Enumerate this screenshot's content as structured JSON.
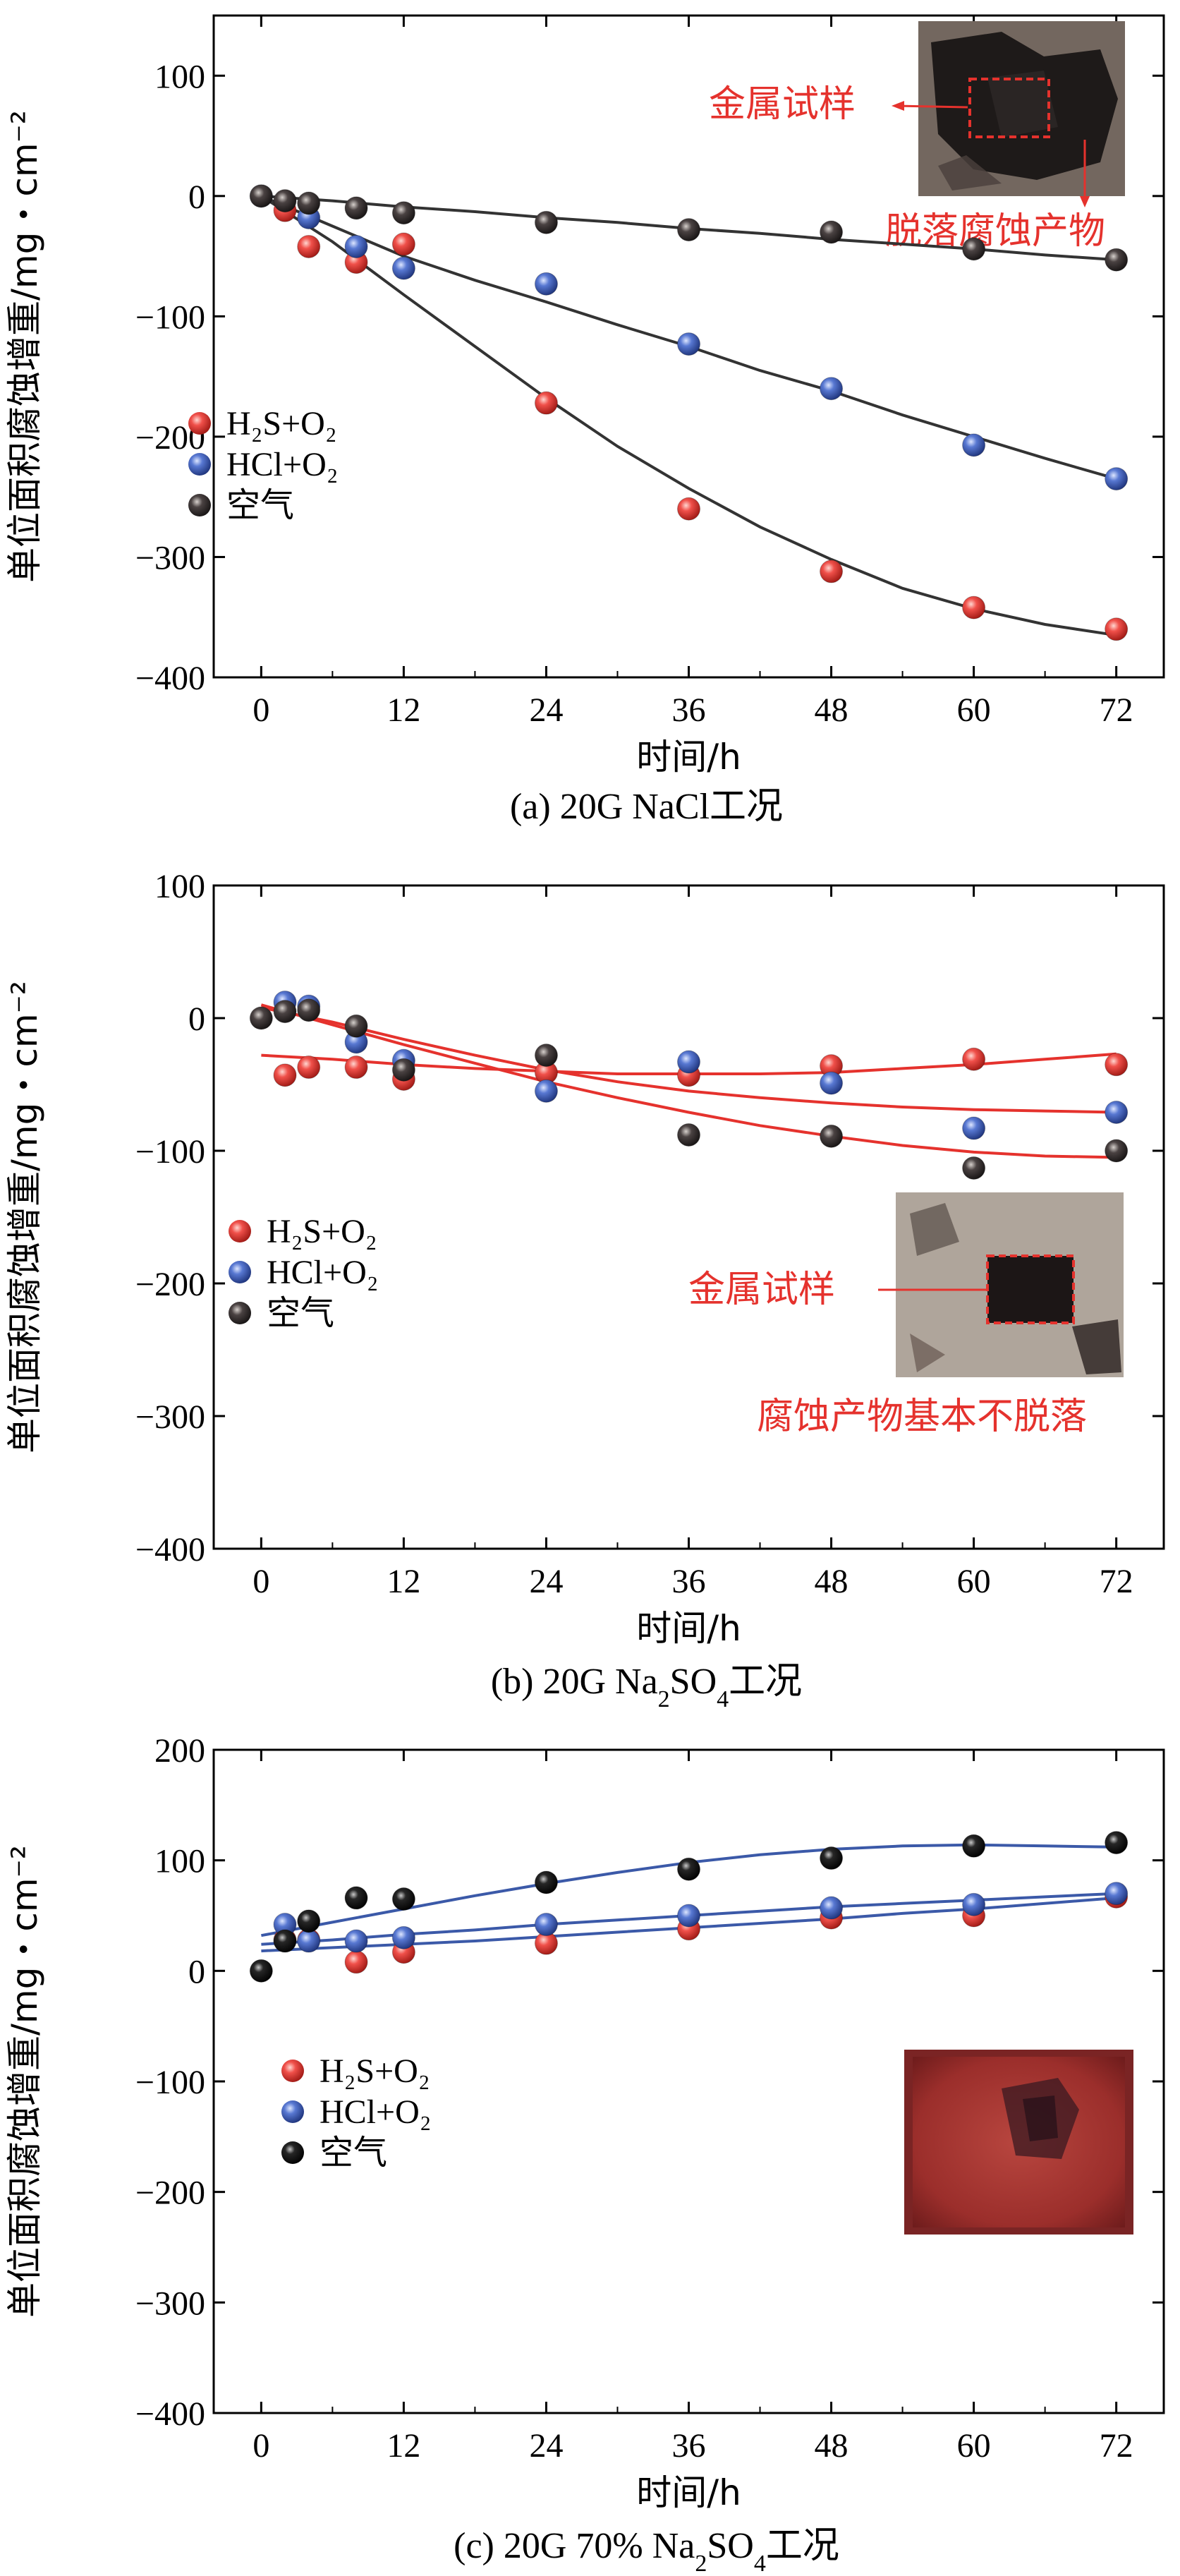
{
  "chart_data": [
    {
      "type": "scatter",
      "caption": "(a) 20G NaCl工况",
      "xlabel": "时间/h",
      "ylabel": "单位面积腐蚀增重/mg・cm⁻²",
      "xticks": [
        0,
        12,
        24,
        36,
        48,
        60,
        72
      ],
      "yticks": [
        100,
        0,
        -100,
        -200,
        -300,
        -400
      ],
      "xlim": [
        -4,
        76
      ],
      "ylim": [
        -400,
        150
      ],
      "legend": [
        "H₂S+O₂",
        "HCl+O₂",
        "空气"
      ],
      "legend_position": "left-middle",
      "series": [
        {
          "name": "H₂S+O₂",
          "color": "#e8403c",
          "x": [
            2,
            4,
            8,
            12,
            24,
            36,
            48,
            60,
            72
          ],
          "y": [
            -12,
            -42,
            -55,
            -40,
            -172,
            -260,
            -312,
            -342,
            -360
          ]
        },
        {
          "name": "HCl+O₂",
          "color": "#4a6cc7",
          "x": [
            0,
            4,
            8,
            12,
            24,
            36,
            48,
            60,
            72
          ],
          "y": [
            0,
            -18,
            -42,
            -60,
            -73,
            -123,
            -160,
            -207,
            -235
          ]
        },
        {
          "name": "空气",
          "color": "#3a3333",
          "x": [
            0,
            2,
            4,
            8,
            12,
            24,
            36,
            48,
            60,
            72
          ],
          "y": [
            0,
            -4,
            -6,
            -10,
            -14,
            -22,
            -28,
            -30,
            -44,
            -53
          ]
        }
      ],
      "fits": [
        {
          "color": "#333333",
          "x": [
            0,
            6,
            12,
            18,
            24,
            30,
            36,
            42,
            48,
            54,
            60,
            66,
            72
          ],
          "y": [
            0,
            -4,
            -9,
            -13,
            -18,
            -22,
            -27,
            -31,
            -36,
            -40,
            -44,
            -49,
            -53
          ]
        },
        {
          "color": "#333333",
          "x": [
            0,
            6,
            12,
            18,
            24,
            30,
            36,
            42,
            48,
            54,
            60,
            66,
            72
          ],
          "y": [
            0,
            -25,
            -50,
            -70,
            -88,
            -107,
            -125,
            -145,
            -162,
            -182,
            -200,
            -218,
            -235
          ]
        },
        {
          "color": "#333333",
          "x": [
            0,
            6,
            12,
            18,
            24,
            30,
            36,
            42,
            48,
            54,
            60,
            66,
            72
          ],
          "y": [
            0,
            -38,
            -82,
            -125,
            -168,
            -208,
            -243,
            -275,
            -302,
            -326,
            -343,
            -356,
            -365
          ]
        }
      ],
      "annotations": [
        "金属试样",
        "脱落腐蚀产物"
      ],
      "photo": "dark-corroded-sample"
    },
    {
      "type": "scatter",
      "caption_parts": [
        "(b) 20G Na",
        "2",
        "SO",
        "4",
        "工况"
      ],
      "xlabel": "时间/h",
      "ylabel": "单位面积腐蚀增重/mg・cm⁻²",
      "xticks": [
        0,
        12,
        24,
        36,
        48,
        60,
        72
      ],
      "yticks": [
        100,
        0,
        -100,
        -200,
        -300,
        -400
      ],
      "xlim": [
        -4,
        76
      ],
      "ylim": [
        -400,
        100
      ],
      "legend": [
        "H₂S+O₂",
        "HCl+O₂",
        "空气"
      ],
      "legend_position": "left-middle",
      "series": [
        {
          "name": "H₂S+O₂",
          "color": "#e8403c",
          "x": [
            2,
            4,
            8,
            12,
            24,
            36,
            48,
            60,
            72
          ],
          "y": [
            -43,
            -37,
            -37,
            -46,
            -41,
            -43,
            -36,
            -31,
            -35
          ]
        },
        {
          "name": "HCl+O₂",
          "color": "#4a6cc7",
          "x": [
            2,
            4,
            8,
            12,
            24,
            36,
            48,
            60,
            72
          ],
          "y": [
            12,
            9,
            -18,
            -32,
            -55,
            -33,
            -49,
            -83,
            -71
          ]
        },
        {
          "name": "空气",
          "color": "#3a3333",
          "x": [
            0,
            2,
            4,
            8,
            12,
            24,
            36,
            48,
            60,
            72
          ],
          "y": [
            0,
            5,
            6,
            -6,
            -39,
            -28,
            -88,
            -89,
            -113,
            -100
          ]
        }
      ],
      "fits": [
        {
          "color": "#e5322d",
          "x": [
            0,
            6,
            12,
            18,
            24,
            30,
            36,
            42,
            48,
            54,
            60,
            66,
            72
          ],
          "y": [
            -28,
            -31,
            -35,
            -38,
            -40,
            -42,
            -42,
            -42,
            -41,
            -38,
            -35,
            -31,
            -27
          ]
        },
        {
          "color": "#e5322d",
          "x": [
            0,
            6,
            12,
            18,
            24,
            30,
            36,
            42,
            48,
            54,
            60,
            66,
            72
          ],
          "y": [
            8,
            -3,
            -16,
            -28,
            -39,
            -48,
            -55,
            -60,
            -64,
            -67,
            -69,
            -70,
            -71
          ]
        },
        {
          "color": "#e5322d",
          "x": [
            0,
            6,
            12,
            18,
            24,
            30,
            36,
            42,
            48,
            54,
            60,
            66,
            72
          ],
          "y": [
            10,
            -5,
            -20,
            -34,
            -48,
            -60,
            -71,
            -81,
            -89,
            -96,
            -101,
            -104,
            -105
          ]
        }
      ],
      "annotations": [
        "金属试样",
        "腐蚀产物基本不脱落"
      ],
      "photo": "black-square-sample"
    },
    {
      "type": "scatter",
      "caption_parts": [
        "(c) 20G 70% Na",
        "2",
        "SO",
        "4",
        "工况"
      ],
      "xlabel": "时间/h",
      "ylabel": "单位面积腐蚀增重/mg・cm⁻²",
      "xticks": [
        0,
        12,
        24,
        36,
        48,
        60,
        72
      ],
      "yticks": [
        200,
        100,
        0,
        -100,
        -200,
        -300,
        -400
      ],
      "xlim": [
        -4,
        76
      ],
      "ylim": [
        -400,
        200
      ],
      "legend": [
        "H₂S+O₂",
        "HCl+O₂",
        "空气"
      ],
      "legend_position": "left-middle",
      "series": [
        {
          "name": "H₂S+O₂",
          "color": "#e8403c",
          "x": [
            2,
            4,
            8,
            12,
            24,
            36,
            48,
            60,
            72
          ],
          "y": [
            28,
            28,
            8,
            17,
            25,
            38,
            48,
            50,
            67
          ]
        },
        {
          "name": "HCl+O₂",
          "color": "#4a6cc7",
          "x": [
            2,
            4,
            8,
            12,
            24,
            36,
            48,
            60,
            72
          ],
          "y": [
            42,
            27,
            27,
            30,
            42,
            50,
            57,
            60,
            70
          ]
        },
        {
          "name": "空气",
          "color": "#141414",
          "x": [
            0,
            2,
            4,
            8,
            12,
            24,
            36,
            48,
            60,
            72
          ],
          "y": [
            0,
            27,
            45,
            66,
            65,
            80,
            92,
            102,
            113,
            116
          ]
        }
      ],
      "fits": [
        {
          "color": "#3b59a8",
          "x": [
            0,
            6,
            12,
            18,
            24,
            30,
            36,
            42,
            48,
            54,
            60,
            66,
            72
          ],
          "y": [
            18,
            21,
            24,
            27,
            31,
            35,
            39,
            43,
            47,
            52,
            56,
            61,
            66
          ]
        },
        {
          "color": "#3b59a8",
          "x": [
            0,
            6,
            12,
            18,
            24,
            30,
            36,
            42,
            48,
            54,
            60,
            66,
            72
          ],
          "y": [
            24,
            28,
            33,
            37,
            42,
            46,
            50,
            54,
            58,
            61,
            64,
            67,
            70
          ]
        },
        {
          "color": "#3b59a8",
          "x": [
            0,
            6,
            12,
            18,
            24,
            30,
            36,
            42,
            48,
            54,
            60,
            66,
            72
          ],
          "y": [
            32,
            44,
            56,
            68,
            79,
            89,
            98,
            105,
            110,
            113,
            114,
            113,
            112
          ]
        }
      ],
      "annotations": [],
      "photo": "red-salt-sample"
    }
  ]
}
